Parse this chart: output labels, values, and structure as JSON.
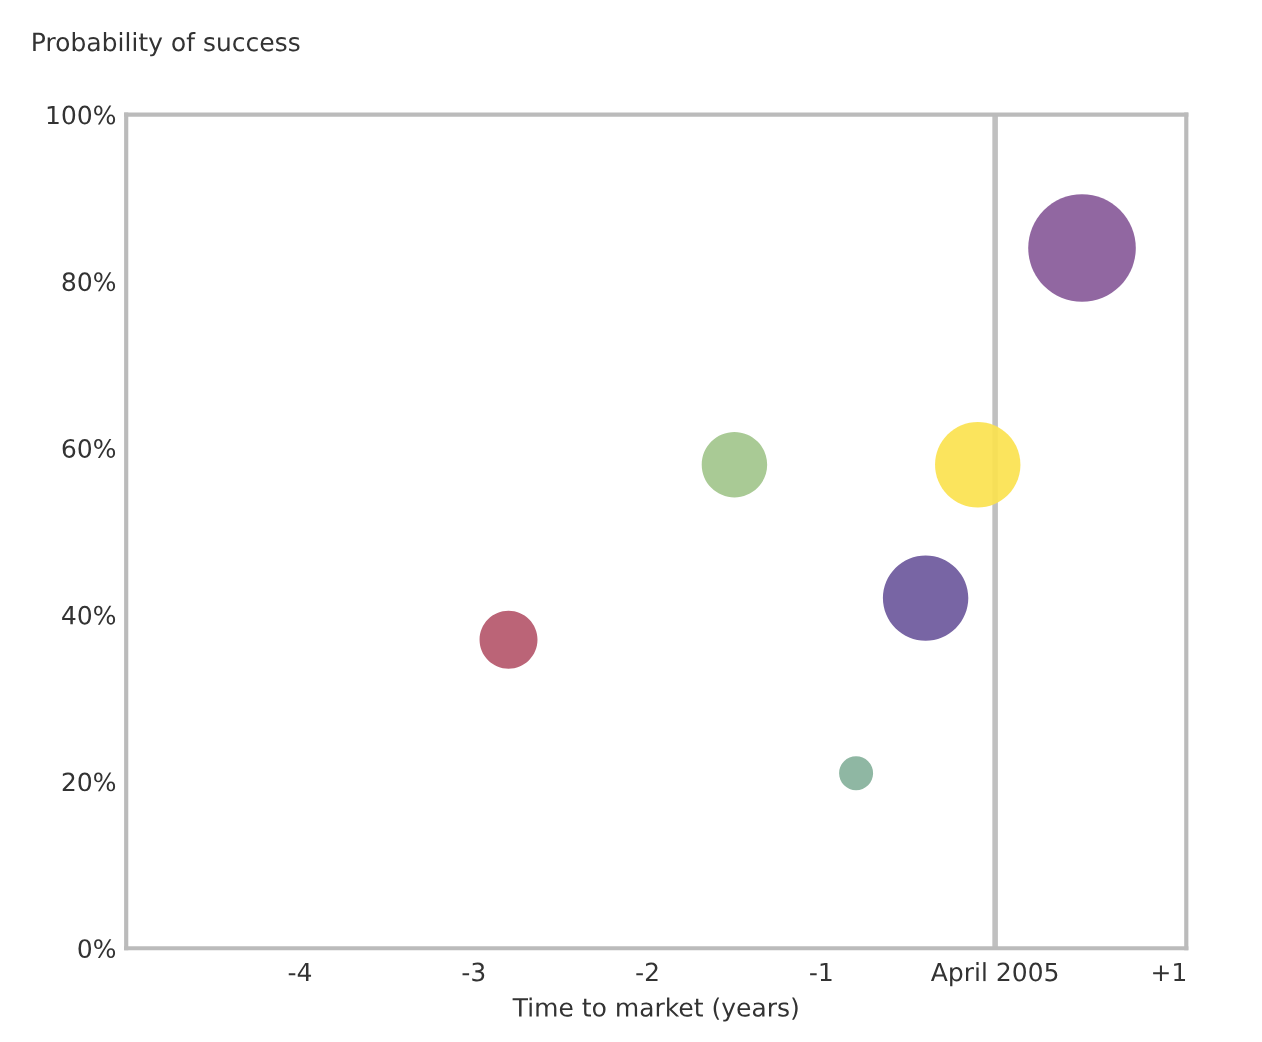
{
  "chart_data": {
    "type": "bubble",
    "ylabel": "Probability of success",
    "xlabel": "Time to market (years)",
    "x": [
      -2.8,
      -1.5,
      -0.8,
      -0.1,
      -0.4,
      0.5
    ],
    "values": [
      37,
      58,
      21,
      58,
      42,
      84
    ],
    "sizes": [
      0.29,
      0.37,
      0.1,
      0.63,
      0.63,
      1
    ],
    "colors": [
      "#b5576b",
      "#a2c68c",
      "#86b19b",
      "#fbe24f",
      "#6c589c",
      "#885a99"
    ],
    "xlim": [
      -5,
      1.1
    ],
    "xticks": [
      -4,
      -3,
      -2,
      -1,
      {
        "value": 0,
        "label": "April 2005"
      },
      {
        "value": 1,
        "label": "+1"
      }
    ],
    "ylim": [
      0,
      100
    ],
    "yticks": [
      {
        "value": 0,
        "label": "0%"
      },
      {
        "value": 20,
        "label": "20%"
      },
      {
        "value": 40,
        "label": "40%"
      },
      {
        "value": 60,
        "label": "60%"
      },
      {
        "value": 80,
        "label": "80%"
      },
      {
        "value": 100,
        "label": "100%"
      }
    ],
    "ref_lines": [
      {
        "axis": "x",
        "value": 0,
        "label": null,
        "color": "#c0c0c0"
      }
    ],
    "grid": false,
    "legend": false
  }
}
